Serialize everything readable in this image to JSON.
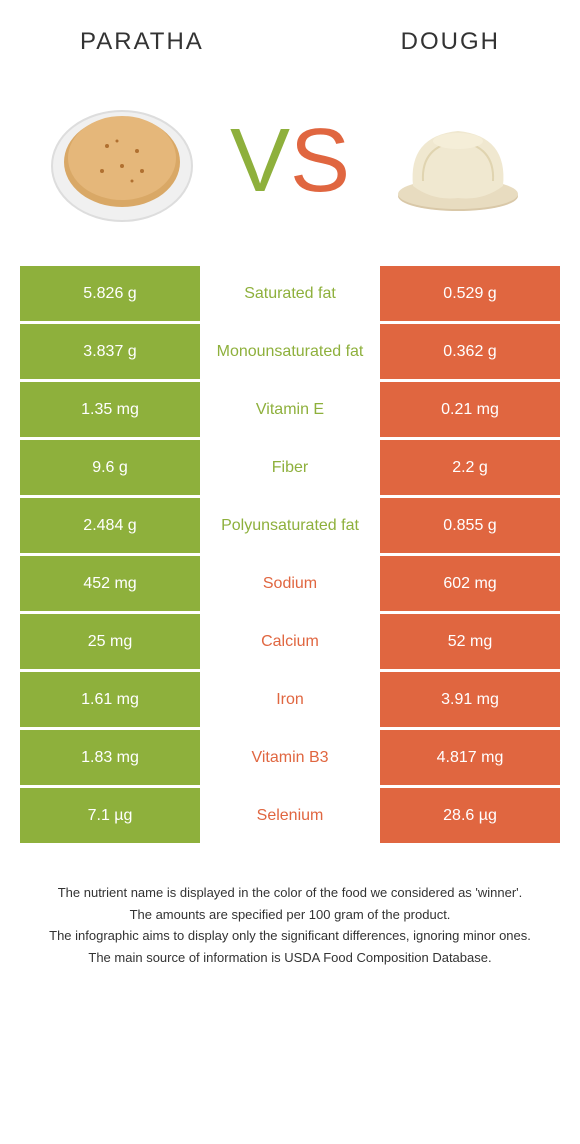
{
  "header": {
    "left": "PARATHA",
    "right": "DOUGH"
  },
  "vs": {
    "v": "V",
    "s": "S"
  },
  "colors": {
    "green": "#8eb03c",
    "orange": "#e06640",
    "white": "#ffffff"
  },
  "rows": [
    {
      "nutrient": "Saturated fat",
      "left": "5.826 g",
      "right": "0.529 g",
      "winner": "left"
    },
    {
      "nutrient": "Monounsaturated fat",
      "left": "3.837 g",
      "right": "0.362 g",
      "winner": "left"
    },
    {
      "nutrient": "Vitamin E",
      "left": "1.35 mg",
      "right": "0.21 mg",
      "winner": "left"
    },
    {
      "nutrient": "Fiber",
      "left": "9.6 g",
      "right": "2.2 g",
      "winner": "left"
    },
    {
      "nutrient": "Polyunsaturated fat",
      "left": "2.484 g",
      "right": "0.855 g",
      "winner": "left"
    },
    {
      "nutrient": "Sodium",
      "left": "452 mg",
      "right": "602 mg",
      "winner": "right"
    },
    {
      "nutrient": "Calcium",
      "left": "25 mg",
      "right": "52 mg",
      "winner": "right"
    },
    {
      "nutrient": "Iron",
      "left": "1.61 mg",
      "right": "3.91 mg",
      "winner": "right"
    },
    {
      "nutrient": "Vitamin B3",
      "left": "1.83 mg",
      "right": "4.817 mg",
      "winner": "right"
    },
    {
      "nutrient": "Selenium",
      "left": "7.1 µg",
      "right": "28.6 µg",
      "winner": "right"
    }
  ],
  "footnotes": [
    "The nutrient name is displayed in the color of the food we considered as 'winner'.",
    "The amounts are specified per 100 gram of the product.",
    "The infographic aims to display only the significant differences, ignoring minor ones.",
    "The main source of information is USDA Food Composition Database."
  ]
}
